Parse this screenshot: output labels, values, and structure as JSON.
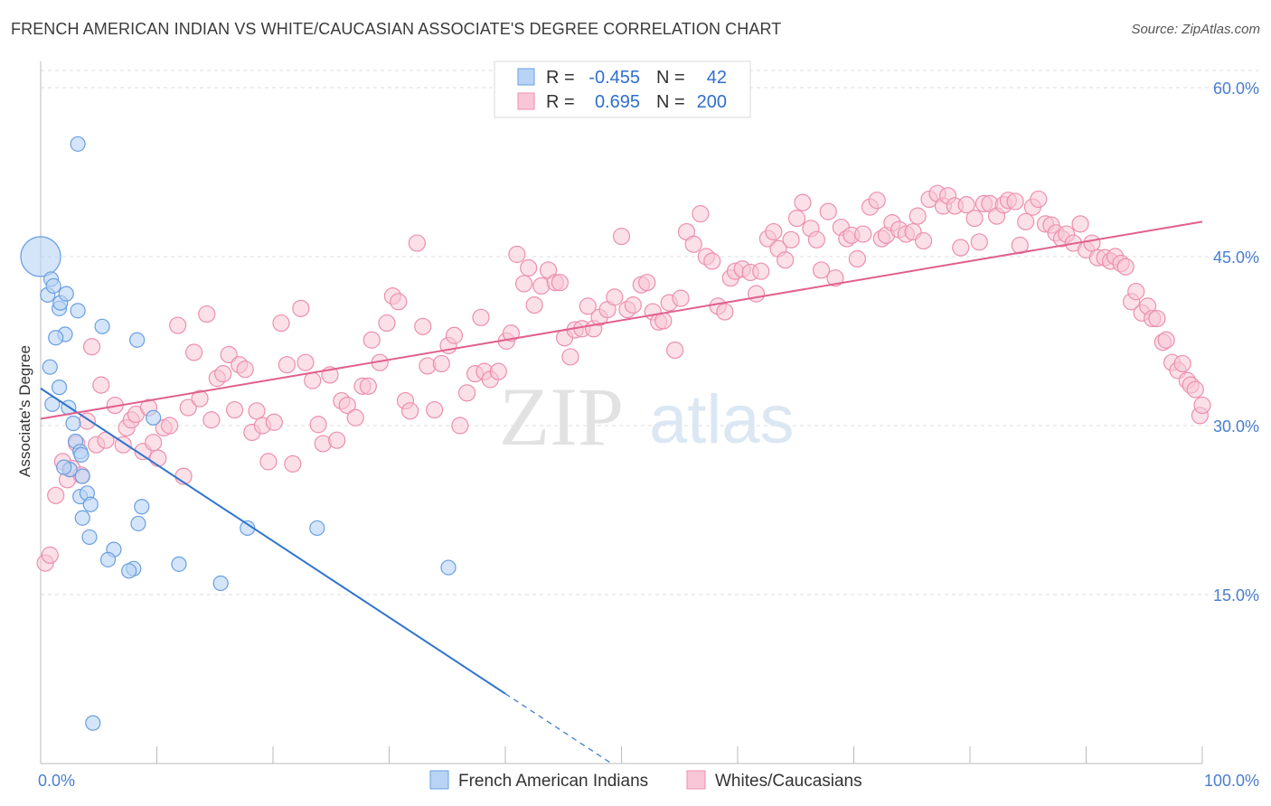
{
  "title": "FRENCH AMERICAN INDIAN VS WHITE/CAUCASIAN ASSOCIATE'S DEGREE CORRELATION CHART",
  "source": "Source: ZipAtlas.com",
  "watermark": {
    "zip": "ZIP",
    "atlas": "atlas"
  },
  "colors": {
    "blue_fill": "#b8d3f5",
    "blue_stroke": "#6a9fe0",
    "blue_line": "#2f74d0",
    "pink_fill": "#f8c6d6",
    "pink_stroke": "#ec8fae",
    "pink_line": "#e0608e",
    "tick_text": "#4a7ed0",
    "grid": "#dcdcdc"
  },
  "legend": {
    "rows": [
      {
        "r_label": "R =",
        "r_value": "-0.455",
        "n_label": "N =",
        "n_value": "42"
      },
      {
        "r_label": "R =",
        "r_value": "0.695",
        "n_label": "N =",
        "n_value": "200"
      }
    ]
  },
  "chart_data": {
    "type": "scatter",
    "xlabel": "",
    "ylabel": "Associate's Degree",
    "xlim": [
      0,
      100
    ],
    "ylim": [
      0,
      60
    ],
    "y_ticks": [
      15,
      30,
      45,
      60
    ],
    "y_tick_labels": [
      "15.0%",
      "30.0%",
      "45.0%",
      "60.0%"
    ],
    "x_tick_labels": [
      "0.0%",
      "100.0%"
    ],
    "grid": true,
    "legend_position": "top-center",
    "series": [
      {
        "name": "French American Indians",
        "trend": {
          "x0": 0,
          "y0": 33.3,
          "x1": 40,
          "y1": 6.2,
          "dashed_to_x": 49.0
        },
        "points": [
          [
            0,
            45
          ],
          [
            0.6,
            41.6
          ],
          [
            0.9,
            43
          ],
          [
            1.1,
            42.4
          ],
          [
            1.6,
            40.4
          ],
          [
            1.7,
            40.9
          ],
          [
            2.2,
            41.7
          ],
          [
            2.1,
            38.1
          ],
          [
            1.3,
            37.8
          ],
          [
            3.2,
            40.2
          ],
          [
            0.8,
            35.2
          ],
          [
            1.6,
            33.4
          ],
          [
            1.0,
            31.9
          ],
          [
            2.4,
            31.6
          ],
          [
            2.8,
            30.2
          ],
          [
            3.0,
            28.6
          ],
          [
            3.4,
            27.7
          ],
          [
            3.5,
            27.4
          ],
          [
            2.5,
            26.1
          ],
          [
            2.0,
            26.3
          ],
          [
            5.3,
            38.8
          ],
          [
            3.6,
            25.5
          ],
          [
            3.4,
            23.7
          ],
          [
            4.0,
            24.0
          ],
          [
            4.3,
            23.0
          ],
          [
            8.3,
            37.6
          ],
          [
            9.7,
            30.7
          ],
          [
            8.7,
            22.8
          ],
          [
            3.6,
            21.8
          ],
          [
            8.4,
            21.3
          ],
          [
            17.8,
            20.9
          ],
          [
            23.8,
            20.9
          ],
          [
            4.2,
            20.1
          ],
          [
            6.3,
            19.0
          ],
          [
            5.8,
            18.1
          ],
          [
            11.9,
            17.7
          ],
          [
            8.0,
            17.3
          ],
          [
            7.6,
            17.1
          ],
          [
            15.5,
            16.0
          ],
          [
            35.1,
            17.4
          ],
          [
            3.2,
            55
          ],
          [
            4.5,
            3.6
          ]
        ],
        "big_point_index": 0
      },
      {
        "name": "Whites/Caucasians",
        "trend": {
          "x0": 0,
          "y0": 30.6,
          "x1": 100,
          "y1": 48.1
        },
        "points": [
          [
            0.4,
            17.8
          ],
          [
            0.8,
            18.5
          ],
          [
            1.3,
            23.8
          ],
          [
            1.9,
            26.8
          ],
          [
            2.3,
            25.2
          ],
          [
            2.7,
            26.2
          ],
          [
            3.1,
            28.4
          ],
          [
            3.5,
            25.6
          ],
          [
            4.0,
            30.4
          ],
          [
            4.4,
            37.0
          ],
          [
            4.8,
            28.3
          ],
          [
            5.2,
            33.6
          ],
          [
            5.6,
            28.7
          ],
          [
            6.4,
            31.8
          ],
          [
            7.1,
            28.3
          ],
          [
            7.4,
            29.8
          ],
          [
            7.8,
            30.5
          ],
          [
            8.2,
            31.0
          ],
          [
            8.8,
            27.7
          ],
          [
            9.3,
            31.6
          ],
          [
            9.7,
            28.5
          ],
          [
            10.1,
            27.1
          ],
          [
            10.6,
            29.8
          ],
          [
            11.1,
            30.0
          ],
          [
            11.8,
            38.9
          ],
          [
            12.3,
            25.5
          ],
          [
            12.7,
            31.6
          ],
          [
            13.2,
            36.5
          ],
          [
            13.7,
            32.4
          ],
          [
            14.3,
            39.9
          ],
          [
            14.7,
            30.5
          ],
          [
            15.2,
            34.2
          ],
          [
            15.7,
            34.6
          ],
          [
            16.2,
            36.3
          ],
          [
            16.7,
            31.4
          ],
          [
            17.1,
            35.4
          ],
          [
            17.6,
            35.0
          ],
          [
            18.2,
            29.4
          ],
          [
            18.6,
            31.3
          ],
          [
            19.1,
            30.0
          ],
          [
            19.6,
            26.8
          ],
          [
            20.1,
            30.3
          ],
          [
            20.7,
            39.1
          ],
          [
            21.2,
            35.4
          ],
          [
            21.7,
            26.6
          ],
          [
            22.4,
            40.4
          ],
          [
            22.8,
            35.6
          ],
          [
            23.4,
            34.0
          ],
          [
            23.9,
            30.1
          ],
          [
            24.3,
            28.4
          ],
          [
            24.9,
            34.5
          ],
          [
            25.5,
            28.7
          ],
          [
            25.9,
            32.2
          ],
          [
            26.4,
            31.8
          ],
          [
            27.1,
            30.7
          ],
          [
            27.7,
            33.5
          ],
          [
            28.2,
            33.5
          ],
          [
            28.5,
            37.6
          ],
          [
            29.2,
            35.6
          ],
          [
            29.8,
            39.1
          ],
          [
            30.3,
            41.5
          ],
          [
            30.8,
            41.0
          ],
          [
            31.4,
            32.2
          ],
          [
            31.8,
            31.3
          ],
          [
            32.4,
            46.2
          ],
          [
            32.9,
            38.8
          ],
          [
            33.3,
            35.3
          ],
          [
            33.9,
            31.4
          ],
          [
            34.5,
            35.5
          ],
          [
            35.1,
            37.1
          ],
          [
            35.6,
            38.0
          ],
          [
            36.1,
            30.0
          ],
          [
            36.7,
            32.9
          ],
          [
            37.4,
            34.6
          ],
          [
            37.9,
            39.6
          ],
          [
            38.2,
            34.8
          ],
          [
            38.7,
            34.1
          ],
          [
            39.4,
            34.8
          ],
          [
            40.1,
            37.5
          ],
          [
            40.5,
            38.2
          ],
          [
            41.0,
            45.2
          ],
          [
            41.6,
            42.6
          ],
          [
            42.0,
            44.0
          ],
          [
            42.5,
            40.7
          ],
          [
            43.1,
            42.4
          ],
          [
            43.7,
            43.8
          ],
          [
            44.3,
            42.7
          ],
          [
            44.7,
            42.7
          ],
          [
            45.1,
            37.8
          ],
          [
            45.6,
            36.1
          ],
          [
            46.0,
            38.5
          ],
          [
            46.6,
            38.6
          ],
          [
            47.1,
            40.6
          ],
          [
            47.6,
            38.6
          ],
          [
            48.1,
            39.6
          ],
          [
            48.8,
            40.3
          ],
          [
            49.4,
            41.4
          ],
          [
            50.0,
            46.8
          ],
          [
            50.5,
            40.3
          ],
          [
            51.0,
            40.7
          ],
          [
            51.7,
            42.5
          ],
          [
            52.2,
            42.7
          ],
          [
            52.7,
            40.1
          ],
          [
            53.2,
            39.2
          ],
          [
            53.6,
            39.3
          ],
          [
            54.1,
            40.9
          ],
          [
            54.6,
            36.7
          ],
          [
            55.1,
            41.3
          ],
          [
            55.6,
            47.2
          ],
          [
            56.2,
            46.1
          ],
          [
            56.8,
            48.8
          ],
          [
            57.3,
            45.0
          ],
          [
            57.8,
            44.6
          ],
          [
            58.3,
            40.6
          ],
          [
            58.9,
            40.1
          ],
          [
            59.4,
            43.1
          ],
          [
            59.8,
            43.7
          ],
          [
            60.4,
            43.9
          ],
          [
            61.1,
            43.6
          ],
          [
            61.6,
            41.7
          ],
          [
            62.0,
            43.7
          ],
          [
            62.6,
            46.6
          ],
          [
            63.1,
            47.2
          ],
          [
            63.5,
            45.7
          ],
          [
            64.1,
            44.7
          ],
          [
            64.6,
            46.5
          ],
          [
            65.1,
            48.4
          ],
          [
            65.6,
            49.8
          ],
          [
            66.3,
            47.5
          ],
          [
            66.8,
            46.5
          ],
          [
            67.2,
            43.8
          ],
          [
            67.8,
            49.0
          ],
          [
            68.4,
            43.1
          ],
          [
            68.9,
            47.6
          ],
          [
            69.4,
            46.6
          ],
          [
            69.8,
            46.9
          ],
          [
            70.3,
            44.8
          ],
          [
            70.8,
            47.0
          ],
          [
            71.4,
            49.4
          ],
          [
            72.0,
            50.0
          ],
          [
            72.4,
            46.6
          ],
          [
            72.8,
            46.9
          ],
          [
            73.3,
            48.0
          ],
          [
            73.9,
            47.4
          ],
          [
            74.5,
            47.0
          ],
          [
            75.1,
            47.2
          ],
          [
            75.5,
            48.6
          ],
          [
            76.0,
            46.4
          ],
          [
            76.5,
            50.1
          ],
          [
            77.2,
            50.6
          ],
          [
            77.7,
            49.5
          ],
          [
            78.1,
            50.4
          ],
          [
            78.7,
            49.5
          ],
          [
            79.2,
            45.8
          ],
          [
            79.7,
            49.6
          ],
          [
            80.4,
            48.4
          ],
          [
            80.8,
            46.3
          ],
          [
            81.2,
            49.7
          ],
          [
            81.7,
            49.7
          ],
          [
            82.3,
            48.6
          ],
          [
            82.9,
            49.6
          ],
          [
            83.3,
            50.0
          ],
          [
            83.9,
            49.9
          ],
          [
            84.3,
            46.0
          ],
          [
            84.8,
            48.1
          ],
          [
            85.4,
            49.4
          ],
          [
            85.9,
            50.1
          ],
          [
            86.5,
            47.9
          ],
          [
            87.0,
            47.8
          ],
          [
            87.4,
            47.1
          ],
          [
            87.9,
            46.6
          ],
          [
            88.3,
            47.0
          ],
          [
            88.9,
            46.2
          ],
          [
            89.5,
            47.9
          ],
          [
            90.0,
            45.6
          ],
          [
            90.5,
            46.2
          ],
          [
            91.0,
            44.9
          ],
          [
            91.6,
            44.9
          ],
          [
            92.1,
            44.6
          ],
          [
            92.5,
            45.0
          ],
          [
            93.0,
            44.4
          ],
          [
            93.4,
            44.1
          ],
          [
            93.9,
            41.0
          ],
          [
            94.3,
            41.9
          ],
          [
            94.8,
            40.0
          ],
          [
            95.3,
            40.6
          ],
          [
            95.7,
            39.5
          ],
          [
            96.1,
            39.5
          ],
          [
            96.6,
            37.4
          ],
          [
            96.9,
            37.6
          ],
          [
            97.4,
            35.6
          ],
          [
            97.9,
            34.9
          ],
          [
            98.3,
            35.5
          ],
          [
            98.7,
            34.0
          ],
          [
            99.0,
            33.6
          ],
          [
            99.4,
            33.2
          ],
          [
            99.8,
            30.9
          ],
          [
            100,
            31.8
          ]
        ]
      }
    ]
  },
  "bottom_legend": [
    "French American Indians",
    "Whites/Caucasians"
  ]
}
